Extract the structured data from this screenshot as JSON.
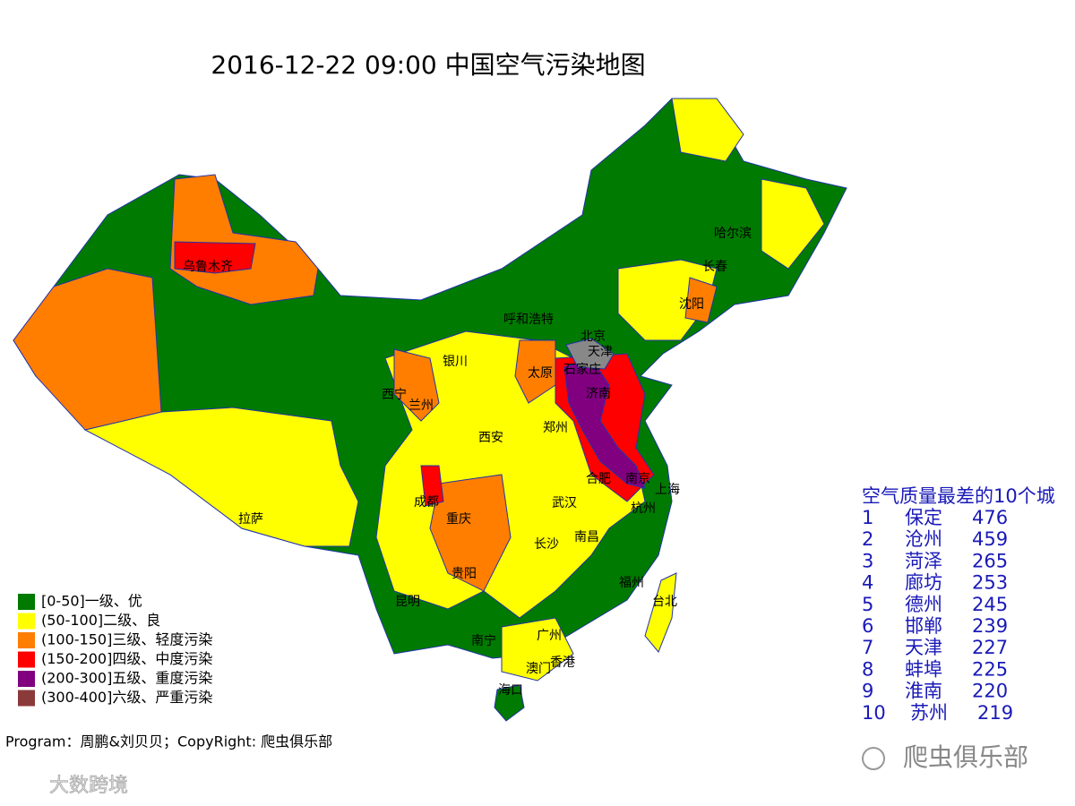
{
  "title": "2016-12-22 09:00 中国空气污染地图",
  "legend": [
    {
      "label": "[0-50]一级、优",
      "color": "#007a00"
    },
    {
      "label": "(50-100]二级、良",
      "color": "#ffff00"
    },
    {
      "label": "(100-150]三级、轻度污染",
      "color": "#ff7e00"
    },
    {
      "label": "(150-200]四级、中度污染",
      "color": "#ff0000"
    },
    {
      "label": "(200-300]五级、重度污染",
      "color": "#800080"
    },
    {
      "label": "(300-400]六级、严重污染",
      "color": "#8b3a3a"
    }
  ],
  "cities": [
    "乌鲁木齐",
    "哈尔滨",
    "长春",
    "沈阳",
    "呼和浩特",
    "北京",
    "天津",
    "石家庄",
    "太原",
    "银川",
    "西宁",
    "兰州",
    "济南",
    "郑州",
    "西安",
    "合肥",
    "南京",
    "上海",
    "成都",
    "武汉",
    "杭州",
    "重庆",
    "拉萨",
    "长沙",
    "南昌",
    "贵阳",
    "福州",
    "台北",
    "昆明",
    "南宁",
    "广州",
    "澳门",
    "香港",
    "海口"
  ],
  "ranking": {
    "title": "空气质量最差的10个城",
    "rows": [
      {
        "rank": 1,
        "city": "保定",
        "value": 476
      },
      {
        "rank": 2,
        "city": "沧州",
        "value": 459
      },
      {
        "rank": 3,
        "city": "菏泽",
        "value": 265
      },
      {
        "rank": 4,
        "city": "廊坊",
        "value": 253
      },
      {
        "rank": 5,
        "city": "德州",
        "value": 245
      },
      {
        "rank": 6,
        "city": "邯郸",
        "value": 239
      },
      {
        "rank": 7,
        "city": "天津",
        "value": 227
      },
      {
        "rank": 8,
        "city": "蚌埠",
        "value": 225
      },
      {
        "rank": 9,
        "city": "淮南",
        "value": 220
      },
      {
        "rank": 10,
        "city": "苏州",
        "value": 219
      }
    ]
  },
  "footer": "Program：周鹏&刘贝贝；CopyRight: 爬虫俱乐部",
  "watermarks": [
    "大数跨境",
    "爬虫俱乐部"
  ]
}
